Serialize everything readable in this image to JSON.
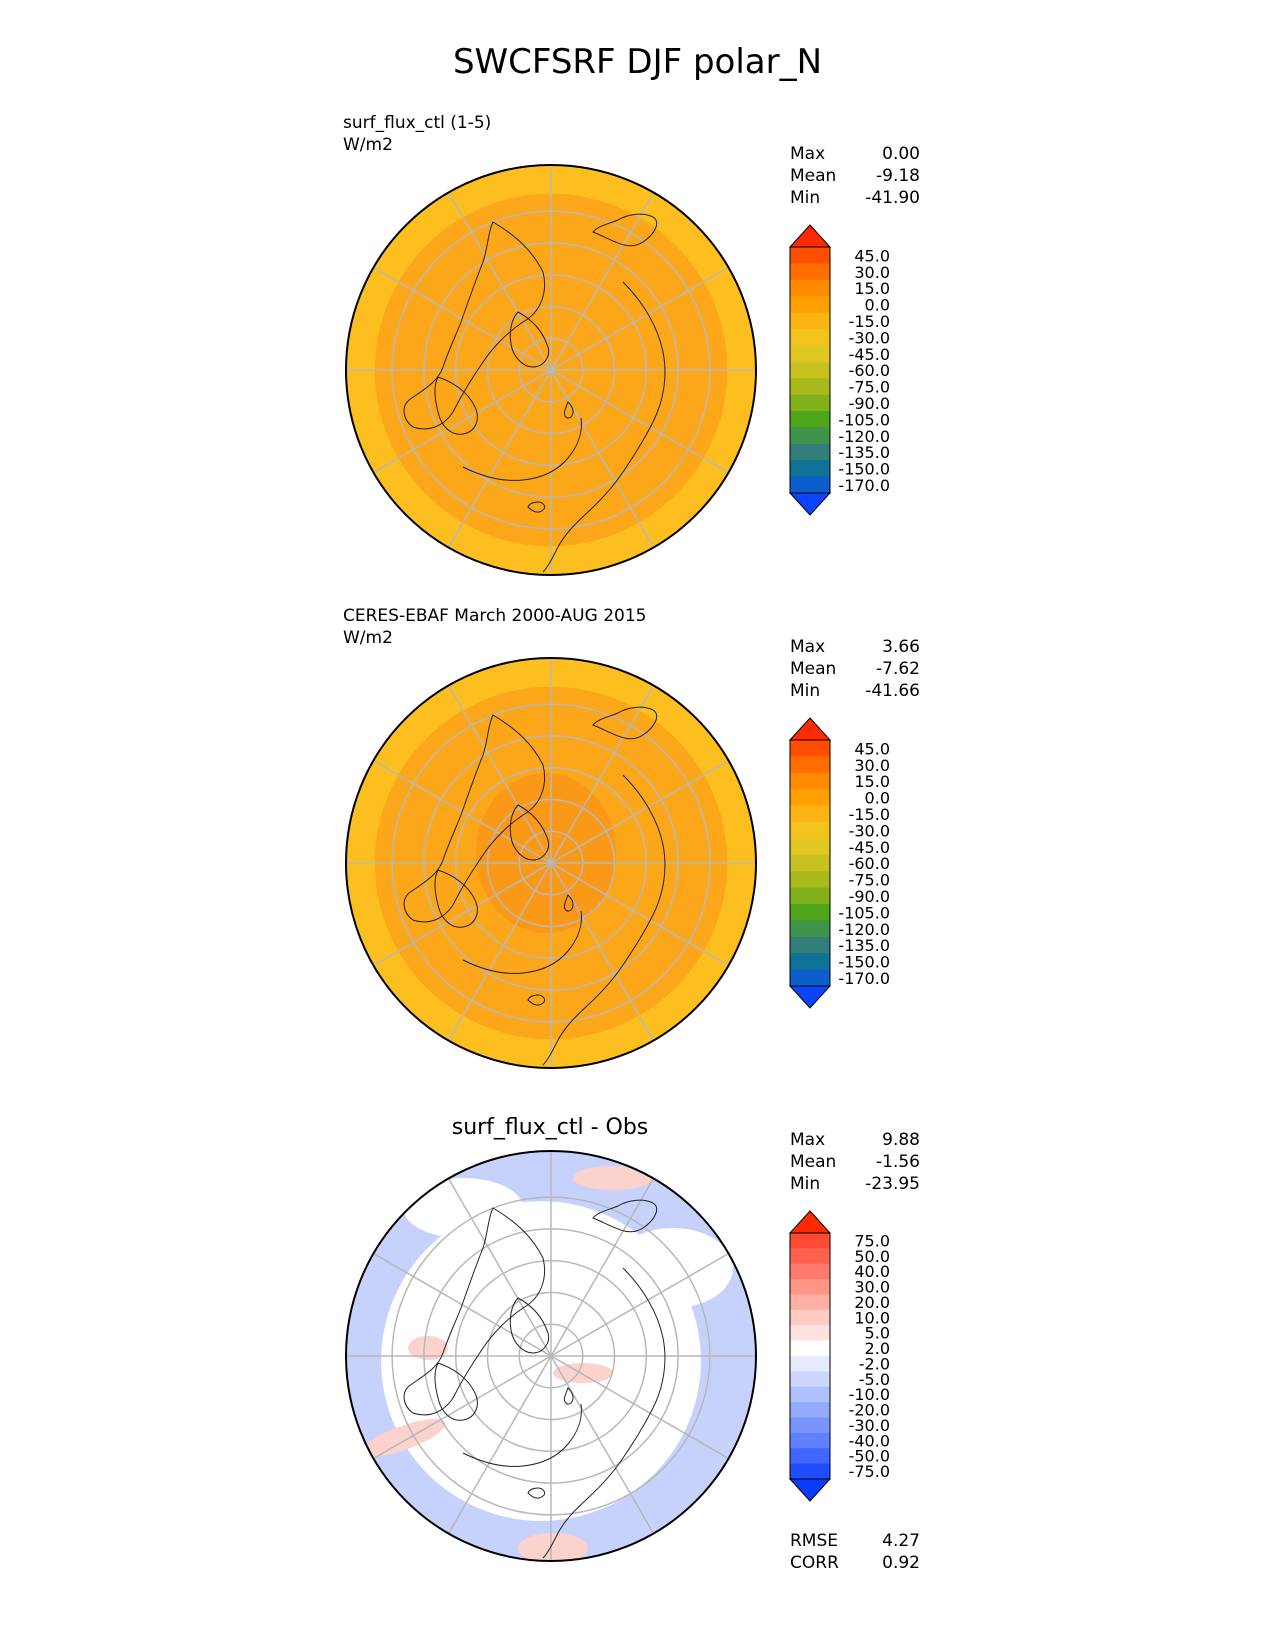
{
  "title": "SWCFSRF DJF polar_N",
  "panels": [
    {
      "label": "surf_flux_ctl (1-5)",
      "units": "W/m2",
      "heading": "",
      "stats": {
        "max_label": "Max",
        "max": "0.00",
        "mean_label": "Mean",
        "mean": "-9.18",
        "min_label": "Min",
        "min": "-41.90"
      },
      "colorbar_labels": [
        "45.0",
        "30.0",
        "15.0",
        "0.0",
        "-15.0",
        "-30.0",
        "-45.0",
        "-60.0",
        "-75.0",
        "-90.0",
        "-105.0",
        "-120.0",
        "-135.0",
        "-150.0",
        "-170.0"
      ],
      "colorbar_colors": [
        "#ff2a00",
        "#ff4e00",
        "#ff6c00",
        "#ff8a00",
        "#ffa000",
        "#fcb414",
        "#f4c21c",
        "#e2c722",
        "#c8c220",
        "#a8ba1c",
        "#80b01a",
        "#4ea51a",
        "#3e944a",
        "#327e7a",
        "#0f7296",
        "#0b5ecc",
        "#0a44ff"
      ],
      "map_colors": {
        "land_fill": "#fca61a",
        "outer_band": "#fcbf1f",
        "inner": "#fca61a",
        "polar": "#fca61a"
      }
    },
    {
      "label": "CERES-EBAF March 2000-AUG 2015",
      "units": "W/m2",
      "heading": "",
      "stats": {
        "max_label": "Max",
        "max": "3.66",
        "mean_label": "Mean",
        "mean": "-7.62",
        "min_label": "Min",
        "min": "-41.66"
      },
      "colorbar_labels": [
        "45.0",
        "30.0",
        "15.0",
        "0.0",
        "-15.0",
        "-30.0",
        "-45.0",
        "-60.0",
        "-75.0",
        "-90.0",
        "-105.0",
        "-120.0",
        "-135.0",
        "-150.0",
        "-170.0"
      ],
      "colorbar_colors": [
        "#ff2a00",
        "#ff4e00",
        "#ff6c00",
        "#ff8a00",
        "#ffa000",
        "#fcb414",
        "#f4c21c",
        "#e2c722",
        "#c8c220",
        "#a8ba1c",
        "#80b01a",
        "#4ea51a",
        "#3e944a",
        "#327e7a",
        "#0f7296",
        "#0b5ecc",
        "#0a44ff"
      ],
      "map_colors": {
        "land_fill": "#fca61a",
        "outer_band": "#fcbf1f",
        "inner": "#fca61a",
        "polar": "#fa9818"
      }
    },
    {
      "label": "",
      "units": "",
      "heading": "surf_flux_ctl - Obs",
      "stats": {
        "max_label": "Max",
        "max": "9.88",
        "mean_label": "Mean",
        "mean": "-1.56",
        "min_label": "Min",
        "min": "-23.95"
      },
      "colorbar_labels": [
        "75.0",
        "50.0",
        "40.0",
        "30.0",
        "20.0",
        "10.0",
        "5.0",
        "2.0",
        "-2.0",
        "-5.0",
        "-10.0",
        "-20.0",
        "-30.0",
        "-40.0",
        "-50.0",
        "-75.0"
      ],
      "colorbar_colors": [
        "#ff2a00",
        "#ff4a33",
        "#ff6350",
        "#ff7a6a",
        "#ff9586",
        "#ffb0a4",
        "#ffccc4",
        "#ffe2de",
        "#ffffff",
        "#e6ebff",
        "#ccd6ff",
        "#b0c0ff",
        "#94aaff",
        "#7a94ff",
        "#5f80ff",
        "#4066ff",
        "#1f4cff",
        "#0a3cff"
      ],
      "map_colors": {
        "land_fill": "#ffffff",
        "outer_band": "#c6d2fc",
        "inner": "#ffffff",
        "polar": "#ffffff",
        "pink": "#fbd2cc"
      }
    }
  ],
  "summary": {
    "rmse_label": "RMSE",
    "rmse": "4.27",
    "corr_label": "CORR",
    "corr": "0.92"
  }
}
